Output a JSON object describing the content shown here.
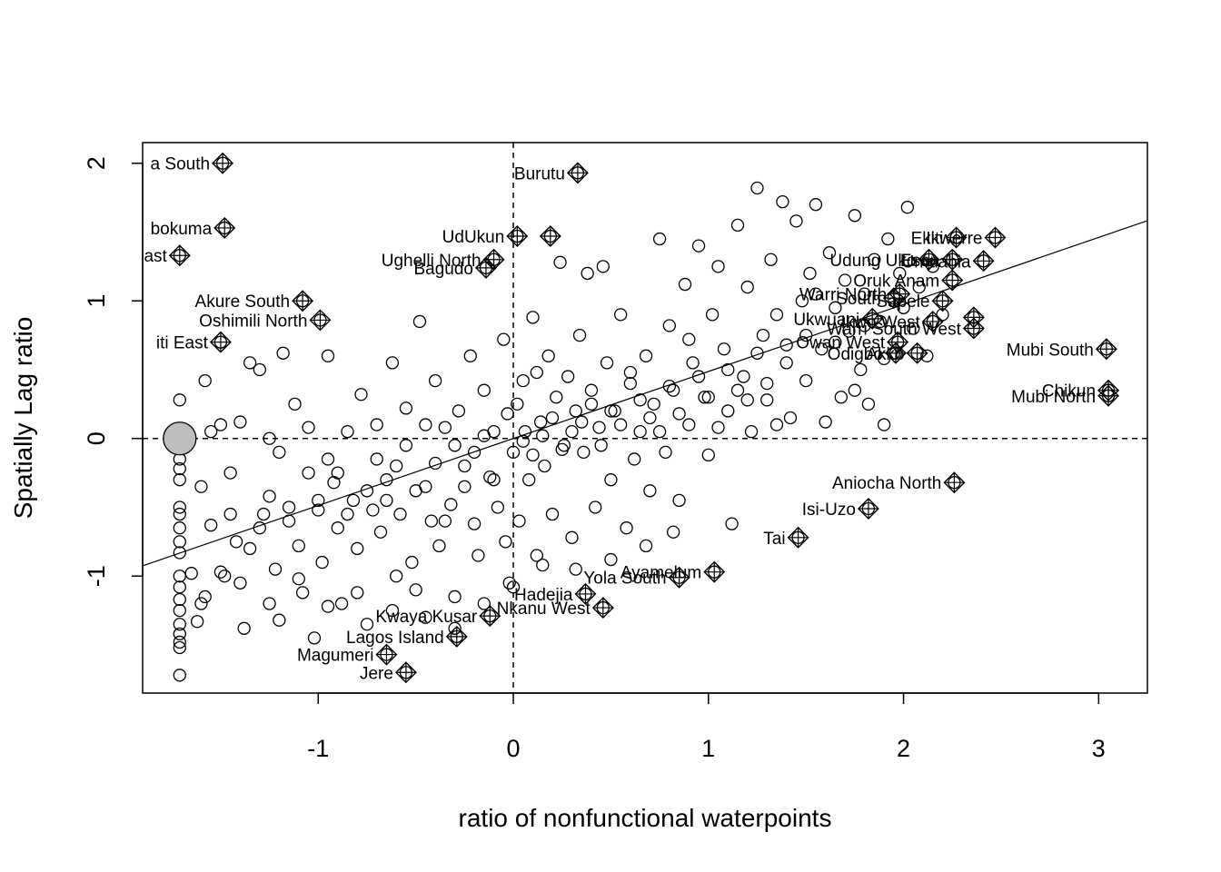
{
  "chart_data": {
    "type": "scatter",
    "title": "",
    "xlabel": "ratio of nonfunctional waterpoints",
    "ylabel": "Spatially Lag ratio",
    "xlim": [
      -1.9,
      3.25
    ],
    "ylim": [
      -1.85,
      2.15
    ],
    "xticks": [
      -1,
      0,
      1,
      2,
      3
    ],
    "yticks": [
      -1,
      0,
      1,
      2
    ],
    "xtick_labels": [
      "-1",
      "0",
      "1",
      "2",
      "3"
    ],
    "ytick_labels": [
      "-1",
      "0",
      "1",
      "2"
    ],
    "grid": false,
    "reference_lines": {
      "x": 0,
      "y": 0,
      "style": "dashed"
    },
    "regression_line": {
      "intercept": 0.0,
      "slope": 0.487
    },
    "mean_marker": {
      "x": -1.71,
      "y": 0.0,
      "color": "#bebebe"
    },
    "influential_points": [
      {
        "label": "a South",
        "x": -1.49,
        "y": 2.0
      },
      {
        "label": "Burutu",
        "x": 0.33,
        "y": 1.93
      },
      {
        "label": "bokuma",
        "x": -1.48,
        "y": 1.53
      },
      {
        "label": "ast",
        "x": -1.71,
        "y": 1.33
      },
      {
        "label": "UdUkun",
        "x": 0.02,
        "y": 1.47
      },
      {
        "label": "",
        "x": 0.19,
        "y": 1.47
      },
      {
        "label": "Ughelli North",
        "x": -0.1,
        "y": 1.3
      },
      {
        "label": "Bagudo",
        "x": -0.14,
        "y": 1.24
      },
      {
        "label": "Akure South",
        "x": -1.08,
        "y": 1.0
      },
      {
        "label": "Oshimili North",
        "x": -0.99,
        "y": 0.86
      },
      {
        "label": "iti East",
        "x": -1.5,
        "y": 0.7
      },
      {
        "label": "Ekiti",
        "x": 2.27,
        "y": 1.46
      },
      {
        "label": "Ikwerre",
        "x": 2.47,
        "y": 1.46
      },
      {
        "label": "Udung Uko",
        "x": 2.13,
        "y": 1.3
      },
      {
        "label": "Esan",
        "x": 2.25,
        "y": 1.3
      },
      {
        "label": "Umuahia",
        "x": 2.41,
        "y": 1.29
      },
      {
        "label": "Oruk Anam",
        "x": 2.25,
        "y": 1.15
      },
      {
        "label": "Warri North",
        "x": 1.98,
        "y": 1.05
      },
      {
        "label": "South",
        "x": 1.95,
        "y": 1.02
      },
      {
        "label": "Sapele",
        "x": 2.2,
        "y": 1.0
      },
      {
        "label": "Ukwuani",
        "x": 1.84,
        "y": 0.87
      },
      {
        "label": "Ikwo West",
        "x": 2.15,
        "y": 0.85
      },
      {
        "label": "",
        "x": 2.36,
        "y": 0.88
      },
      {
        "label": "Warri South West",
        "x": 2.36,
        "y": 0.8
      },
      {
        "label": "Owan West",
        "x": 1.97,
        "y": 0.7
      },
      {
        "label": "Odigbo",
        "x": 1.96,
        "y": 0.62
      },
      {
        "label": "Akko",
        "x": 2.07,
        "y": 0.62
      },
      {
        "label": "Mubi South",
        "x": 3.04,
        "y": 0.65
      },
      {
        "label": "Chikun",
        "x": 3.05,
        "y": 0.35
      },
      {
        "label": "Mubi North",
        "x": 3.05,
        "y": 0.31
      },
      {
        "label": "Aniocha North",
        "x": 2.26,
        "y": -0.32
      },
      {
        "label": "Isi-Uzo",
        "x": 1.82,
        "y": -0.51
      },
      {
        "label": "Tai",
        "x": 1.46,
        "y": -0.72
      },
      {
        "label": "Ayamelum",
        "x": 1.03,
        "y": -0.97
      },
      {
        "label": "Yola South",
        "x": 0.85,
        "y": -1.01
      },
      {
        "label": "Hadejia",
        "x": 0.37,
        "y": -1.13
      },
      {
        "label": "Nkanu West",
        "x": 0.46,
        "y": -1.23
      },
      {
        "label": "Kwaya Kusar",
        "x": -0.12,
        "y": -1.29
      },
      {
        "label": "Lagos Island",
        "x": -0.29,
        "y": -1.44
      },
      {
        "label": "Magumeri",
        "x": -0.65,
        "y": -1.57
      },
      {
        "label": "Jere",
        "x": -0.55,
        "y": -1.7
      }
    ],
    "points": [
      [
        -1.71,
        -0.15
      ],
      [
        -1.71,
        -0.22
      ],
      [
        -1.71,
        -0.3
      ],
      [
        -1.71,
        -0.5
      ],
      [
        -1.71,
        -0.55
      ],
      [
        -1.71,
        -0.65
      ],
      [
        -1.71,
        -0.75
      ],
      [
        -1.71,
        -0.83
      ],
      [
        -1.71,
        -1.0
      ],
      [
        -1.71,
        -1.08
      ],
      [
        -1.71,
        -1.17
      ],
      [
        -1.71,
        -1.25
      ],
      [
        -1.71,
        -1.35
      ],
      [
        -1.71,
        -1.42
      ],
      [
        -1.71,
        -1.48
      ],
      [
        -1.71,
        -1.52
      ],
      [
        -1.71,
        -1.72
      ],
      [
        -1.71,
        0.28
      ],
      [
        -1.65,
        -0.98
      ],
      [
        -1.62,
        -1.33
      ],
      [
        -1.6,
        -1.2
      ],
      [
        -1.58,
        0.42
      ],
      [
        -1.55,
        -0.63
      ],
      [
        -1.5,
        0.1
      ],
      [
        -1.5,
        -0.97
      ],
      [
        -1.48,
        -1.0
      ],
      [
        -1.45,
        -0.55
      ],
      [
        -1.42,
        -0.75
      ],
      [
        -1.4,
        0.12
      ],
      [
        -1.38,
        -1.38
      ],
      [
        -1.35,
        -0.8
      ],
      [
        -1.3,
        0.5
      ],
      [
        -1.28,
        -0.55
      ],
      [
        -1.25,
        -0.42
      ],
      [
        -1.22,
        -0.95
      ],
      [
        -1.2,
        -1.32
      ],
      [
        -1.18,
        0.62
      ],
      [
        -1.15,
        -0.6
      ],
      [
        -1.12,
        0.25
      ],
      [
        -1.1,
        -0.78
      ],
      [
        -1.08,
        -1.12
      ],
      [
        -1.05,
        -0.25
      ],
      [
        -1.02,
        -1.45
      ],
      [
        -1.0,
        -0.52
      ],
      [
        -0.98,
        -0.9
      ],
      [
        -0.95,
        0.6
      ],
      [
        -0.92,
        -0.32
      ],
      [
        -0.9,
        -0.65
      ],
      [
        -0.88,
        -1.2
      ],
      [
        -0.85,
        0.05
      ],
      [
        -0.82,
        -0.45
      ],
      [
        -0.8,
        -0.8
      ],
      [
        -0.78,
        0.32
      ],
      [
        -0.75,
        -1.35
      ],
      [
        -0.72,
        -0.52
      ],
      [
        -0.7,
        0.1
      ],
      [
        -0.68,
        -0.68
      ],
      [
        -0.65,
        -0.3
      ],
      [
        -0.62,
        0.55
      ],
      [
        -0.6,
        -1.0
      ],
      [
        -0.58,
        -0.55
      ],
      [
        -0.55,
        0.22
      ],
      [
        -0.52,
        -0.9
      ],
      [
        -0.5,
        -1.1
      ],
      [
        -0.48,
        0.85
      ],
      [
        -0.45,
        -0.35
      ],
      [
        -0.42,
        -0.6
      ],
      [
        -0.4,
        0.42
      ],
      [
        -0.38,
        -0.78
      ],
      [
        -0.35,
        0.08
      ],
      [
        -0.32,
        -0.48
      ],
      [
        -0.3,
        -1.15
      ],
      [
        -0.28,
        0.2
      ],
      [
        -0.25,
        -0.2
      ],
      [
        -0.22,
        0.6
      ],
      [
        -0.2,
        -0.62
      ],
      [
        -0.18,
        -0.85
      ],
      [
        -0.15,
        0.35
      ],
      [
        -0.12,
        -0.28
      ],
      [
        -0.1,
        0.05
      ],
      [
        -0.08,
        -0.5
      ],
      [
        -0.05,
        0.72
      ],
      [
        -0.04,
        -0.75
      ],
      [
        -0.03,
        0.18
      ],
      [
        -0.02,
        -1.05
      ],
      [
        0.02,
        0.25
      ],
      [
        0.03,
        -0.6
      ],
      [
        0.05,
        0.42
      ],
      [
        0.06,
        0.05
      ],
      [
        0.08,
        -0.3
      ],
      [
        0.1,
        0.88
      ],
      [
        0.12,
        -0.85
      ],
      [
        0.14,
        0.12
      ],
      [
        0.16,
        -0.2
      ],
      [
        0.18,
        0.6
      ],
      [
        0.2,
        -0.55
      ],
      [
        0.22,
        0.3
      ],
      [
        0.24,
        1.28
      ],
      [
        0.26,
        -0.05
      ],
      [
        0.28,
        0.45
      ],
      [
        0.3,
        -0.72
      ],
      [
        0.32,
        0.2
      ],
      [
        0.34,
        0.75
      ],
      [
        0.36,
        -0.1
      ],
      [
        0.38,
        1.2
      ],
      [
        0.4,
        0.35
      ],
      [
        0.42,
        -0.5
      ],
      [
        0.44,
        0.08
      ],
      [
        0.46,
        1.25
      ],
      [
        0.48,
        0.55
      ],
      [
        0.5,
        -0.3
      ],
      [
        0.52,
        0.2
      ],
      [
        0.55,
        0.9
      ],
      [
        0.58,
        -0.65
      ],
      [
        0.6,
        0.4
      ],
      [
        0.62,
        -0.15
      ],
      [
        0.65,
        0.05
      ],
      [
        0.68,
        0.6
      ],
      [
        0.7,
        -0.38
      ],
      [
        0.72,
        0.25
      ],
      [
        0.75,
        1.45
      ],
      [
        0.78,
        -0.1
      ],
      [
        0.8,
        0.82
      ],
      [
        0.82,
        0.35
      ],
      [
        0.85,
        -0.45
      ],
      [
        0.88,
        1.12
      ],
      [
        0.9,
        0.1
      ],
      [
        0.92,
        0.55
      ],
      [
        0.95,
        1.4
      ],
      [
        0.98,
        0.3
      ],
      [
        1.0,
        -0.12
      ],
      [
        1.02,
        0.9
      ],
      [
        1.05,
        1.25
      ],
      [
        1.08,
        0.65
      ],
      [
        1.1,
        0.2
      ],
      [
        1.12,
        -0.62
      ],
      [
        1.15,
        1.55
      ],
      [
        1.18,
        0.45
      ],
      [
        1.2,
        1.1
      ],
      [
        1.22,
        0.05
      ],
      [
        1.25,
        1.82
      ],
      [
        1.28,
        0.75
      ],
      [
        1.3,
        0.28
      ],
      [
        1.32,
        1.3
      ],
      [
        1.35,
        0.9
      ],
      [
        1.38,
        1.72
      ],
      [
        1.4,
        0.55
      ],
      [
        1.42,
        0.15
      ],
      [
        1.45,
        1.58
      ],
      [
        1.48,
        1.0
      ],
      [
        1.5,
        0.42
      ],
      [
        1.52,
        1.2
      ],
      [
        1.55,
        1.7
      ],
      [
        1.58,
        0.65
      ],
      [
        1.6,
        0.12
      ],
      [
        1.62,
        1.35
      ],
      [
        1.65,
        0.95
      ],
      [
        1.68,
        0.3
      ],
      [
        1.7,
        1.15
      ],
      [
        1.72,
        0.78
      ],
      [
        1.75,
        1.62
      ],
      [
        1.78,
        0.5
      ],
      [
        1.8,
        1.05
      ],
      [
        1.82,
        0.25
      ],
      [
        1.85,
        1.3
      ],
      [
        1.88,
        0.85
      ],
      [
        1.9,
        0.1
      ],
      [
        1.92,
        1.45
      ],
      [
        1.95,
        0.62
      ],
      [
        1.98,
        1.2
      ],
      [
        2.0,
        0.95
      ],
      [
        2.02,
        1.68
      ],
      [
        2.05,
        0.8
      ],
      [
        2.08,
        1.1
      ],
      [
        2.12,
        0.6
      ],
      [
        2.15,
        1.25
      ],
      [
        2.2,
        0.9
      ],
      [
        -1.35,
        0.55
      ],
      [
        -1.2,
        -0.1
      ],
      [
        -0.95,
        -0.15
      ],
      [
        -0.7,
        -0.15
      ],
      [
        -0.55,
        -0.05
      ],
      [
        -0.45,
        0.1
      ],
      [
        -0.3,
        -0.05
      ],
      [
        -0.15,
        0.02
      ],
      [
        0.05,
        -0.02
      ],
      [
        0.15,
        0.02
      ],
      [
        0.25,
        -0.08
      ],
      [
        0.35,
        0.12
      ],
      [
        0.5,
        0.2
      ],
      [
        0.65,
        0.28
      ],
      [
        0.8,
        0.38
      ],
      [
        0.95,
        0.45
      ],
      [
        1.1,
        0.5
      ],
      [
        1.25,
        0.62
      ],
      [
        1.4,
        0.68
      ],
      [
        -1.6,
        -0.35
      ],
      [
        -1.45,
        -0.25
      ],
      [
        -1.3,
        -0.65
      ],
      [
        -1.15,
        -0.5
      ],
      [
        -1.0,
        -0.45
      ],
      [
        -0.85,
        -0.55
      ],
      [
        -0.75,
        -0.38
      ],
      [
        -0.6,
        -0.2
      ],
      [
        -0.5,
        -0.38
      ],
      [
        -0.4,
        -0.18
      ],
      [
        -0.25,
        -0.35
      ],
      [
        -0.1,
        -0.3
      ],
      [
        0.0,
        -0.1
      ],
      [
        0.1,
        -0.12
      ],
      [
        0.2,
        0.15
      ],
      [
        0.3,
        0.05
      ],
      [
        0.4,
        0.25
      ],
      [
        0.55,
        0.1
      ],
      [
        0.7,
        0.15
      ],
      [
        0.85,
        0.18
      ],
      [
        1.0,
        0.3
      ],
      [
        1.15,
        0.35
      ],
      [
        1.3,
        0.4
      ],
      [
        1.5,
        0.75
      ],
      [
        1.65,
        0.7
      ],
      [
        1.8,
        0.82
      ],
      [
        -1.55,
        0.05
      ],
      [
        -1.25,
        0.0
      ],
      [
        -1.05,
        0.08
      ],
      [
        -0.9,
        -0.25
      ],
      [
        -0.65,
        -0.45
      ],
      [
        -0.35,
        -0.6
      ],
      [
        -0.2,
        -0.1
      ],
      [
        0.12,
        0.48
      ],
      [
        0.45,
        -0.05
      ],
      [
        0.6,
        0.48
      ],
      [
        0.75,
        0.05
      ],
      [
        0.9,
        0.72
      ],
      [
        1.05,
        0.08
      ],
      [
        1.2,
        0.28
      ],
      [
        1.35,
        0.1
      ],
      [
        1.55,
        1.05
      ],
      [
        1.75,
        0.35
      ],
      [
        1.9,
        0.58
      ],
      [
        -1.58,
        -1.15
      ],
      [
        -1.4,
        -1.05
      ],
      [
        -1.25,
        -1.2
      ],
      [
        -1.1,
        -1.02
      ],
      [
        -0.95,
        -1.22
      ],
      [
        -0.8,
        -1.12
      ],
      [
        -0.62,
        -1.25
      ],
      [
        -0.45,
        -1.3
      ],
      [
        -0.3,
        -1.38
      ],
      [
        -0.15,
        -1.2
      ],
      [
        0.0,
        -1.08
      ],
      [
        0.15,
        -0.92
      ],
      [
        0.32,
        -0.95
      ],
      [
        0.5,
        -0.88
      ],
      [
        0.68,
        -0.78
      ],
      [
        0.82,
        -0.68
      ]
    ]
  }
}
